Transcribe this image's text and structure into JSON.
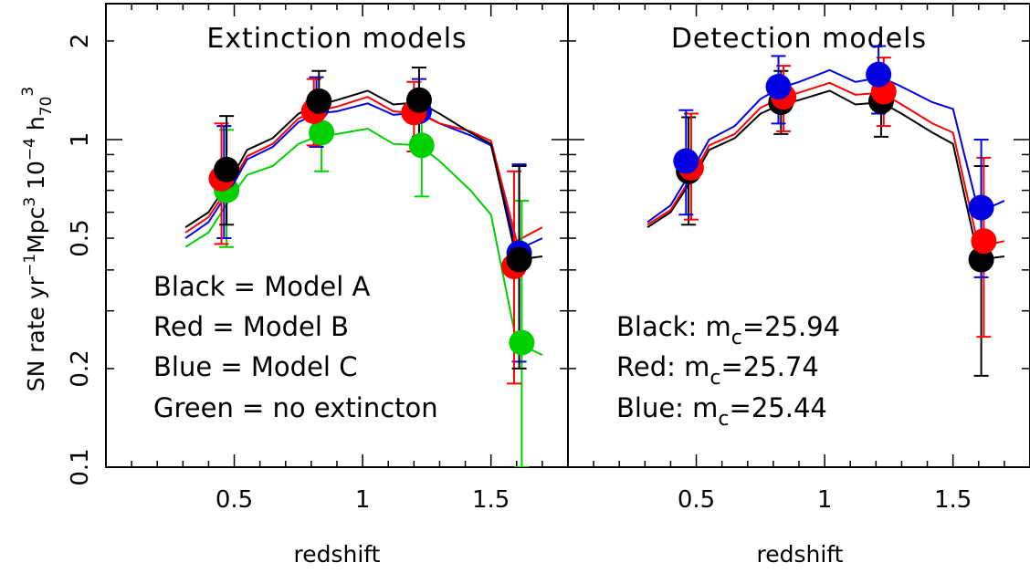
{
  "chart_data": [
    {
      "type": "line",
      "title": "Extinction models",
      "xlabel": "redshift",
      "ylabel": "SN rate yr⁻¹Mpc³ 10⁻⁴ h₇₀³",
      "xlim": [
        0.0,
        1.8
      ],
      "ylim": [
        0.1,
        2.6
      ],
      "yscale": "log",
      "xticks": [
        0.5,
        1,
        1.5
      ],
      "xtick_labels": [
        "0.5",
        "1",
        "1.5"
      ],
      "yticks": [
        0.1,
        0.2,
        0.5,
        1,
        2
      ],
      "ytick_labels": [
        "0.1",
        "0.2",
        "0.5",
        "1",
        "2"
      ],
      "annotations": [
        "Black = Model A",
        "Red = Model B",
        "Blue = Model C",
        "Green = no extincton"
      ],
      "series": [
        {
          "color": "#00d000",
          "curve": {
            "x": [
              0.31,
              0.4,
              0.5,
              0.55,
              0.65,
              0.75,
              0.82,
              0.9,
              1.02,
              1.12,
              1.22,
              1.3,
              1.42,
              1.5,
              1.6,
              1.7
            ],
            "y": [
              0.47,
              0.52,
              0.69,
              0.78,
              0.83,
              0.97,
              1.02,
              1.04,
              1.08,
              0.97,
              0.96,
              0.86,
              0.7,
              0.59,
              0.24,
              0.22
            ]
          },
          "points": [
            {
              "x": 0.47,
              "y": 0.7,
              "lo": 0.47,
              "hi": 1.07
            },
            {
              "x": 0.84,
              "y": 1.05,
              "lo": 0.8,
              "hi": 1.33
            },
            {
              "x": 1.23,
              "y": 0.96,
              "lo": 0.67,
              "hi": 1.23
            },
            {
              "x": 1.62,
              "y": 0.24,
              "lo": 0.1,
              "hi": 0.65
            }
          ]
        },
        {
          "color": "#0000e0",
          "curve": {
            "x": [
              0.31,
              0.4,
              0.5,
              0.55,
              0.65,
              0.75,
              0.82,
              0.9,
              1.02,
              1.12,
              1.22,
              1.3,
              1.42,
              1.5,
              1.6,
              1.7
            ],
            "y": [
              0.5,
              0.56,
              0.74,
              0.87,
              0.95,
              1.13,
              1.2,
              1.22,
              1.29,
              1.19,
              1.21,
              1.12,
              1.03,
              0.96,
              0.46,
              0.5
            ]
          },
          "points": [
            {
              "x": 0.46,
              "y": 0.77,
              "lo": 0.5,
              "hi": 1.1
            },
            {
              "x": 0.82,
              "y": 1.25,
              "lo": 0.95,
              "hi": 1.55
            },
            {
              "x": 1.22,
              "y": 1.22,
              "lo": 0.92,
              "hi": 1.53
            },
            {
              "x": 1.61,
              "y": 0.45,
              "lo": 0.21,
              "hi": 0.84
            }
          ]
        },
        {
          "color": "#ff0000",
          "curve": {
            "x": [
              0.31,
              0.4,
              0.5,
              0.55,
              0.65,
              0.75,
              0.82,
              0.9,
              1.02,
              1.12,
              1.22,
              1.3,
              1.42,
              1.5,
              1.6,
              1.7
            ],
            "y": [
              0.52,
              0.58,
              0.76,
              0.89,
              0.97,
              1.16,
              1.22,
              1.26,
              1.35,
              1.22,
              1.2,
              1.12,
              1.06,
              0.99,
              0.49,
              0.54
            ]
          },
          "points": [
            {
              "x": 0.45,
              "y": 0.76,
              "lo": 0.48,
              "hi": 1.12
            },
            {
              "x": 0.81,
              "y": 1.22,
              "lo": 0.96,
              "hi": 1.53
            },
            {
              "x": 1.2,
              "y": 1.21,
              "lo": 0.92,
              "hi": 1.5
            },
            {
              "x": 1.59,
              "y": 0.41,
              "lo": 0.18,
              "hi": 0.8
            }
          ]
        },
        {
          "color": "#000000",
          "curve": {
            "x": [
              0.31,
              0.4,
              0.5,
              0.55,
              0.65,
              0.75,
              0.82,
              0.9,
              1.02,
              1.12,
              1.22,
              1.3,
              1.42,
              1.5,
              1.6,
              1.7
            ],
            "y": [
              0.54,
              0.6,
              0.79,
              0.93,
              1.01,
              1.2,
              1.27,
              1.32,
              1.41,
              1.28,
              1.3,
              1.2,
              1.05,
              0.97,
              0.43,
              0.44
            ]
          },
          "points": [
            {
              "x": 0.47,
              "y": 0.81,
              "lo": 0.55,
              "hi": 1.18
            },
            {
              "x": 0.83,
              "y": 1.31,
              "lo": 1.03,
              "hi": 1.62
            },
            {
              "x": 1.22,
              "y": 1.32,
              "lo": 1.02,
              "hi": 1.66
            },
            {
              "x": 1.61,
              "y": 0.43,
              "lo": 0.2,
              "hi": 0.83
            }
          ]
        }
      ]
    },
    {
      "type": "line",
      "title": "Detection models",
      "xlabel": "redshift",
      "xlim": [
        0.0,
        1.8
      ],
      "ylim": [
        0.1,
        2.6
      ],
      "yscale": "log",
      "xticks": [
        0.5,
        1,
        1.5
      ],
      "xtick_labels": [
        "0.5",
        "1",
        "1.5"
      ],
      "annotations": [
        "Black: m_c=25.94",
        "Red: m_c=25.74",
        "Blue: m_c=25.44"
      ],
      "annotation_parts": [
        {
          "pre": "Black: m",
          "sub": "c",
          "post": "=25.94"
        },
        {
          "pre": "Red: m",
          "sub": "c",
          "post": "=25.74"
        },
        {
          "pre": "Blue: m",
          "sub": "c",
          "post": "=25.44"
        }
      ],
      "series": [
        {
          "color": "#000000",
          "curve": {
            "x": [
              0.31,
              0.4,
              0.5,
              0.55,
              0.65,
              0.75,
              0.82,
              0.9,
              1.02,
              1.12,
              1.22,
              1.3,
              1.42,
              1.5,
              1.6,
              1.7
            ],
            "y": [
              0.54,
              0.6,
              0.79,
              0.93,
              1.01,
              1.2,
              1.27,
              1.32,
              1.41,
              1.28,
              1.3,
              1.2,
              1.05,
              0.97,
              0.43,
              0.44
            ]
          },
          "points": [
            {
              "x": 0.47,
              "y": 0.8,
              "lo": 0.55,
              "hi": 1.17
            },
            {
              "x": 0.83,
              "y": 1.3,
              "lo": 1.04,
              "hi": 1.62
            },
            {
              "x": 1.22,
              "y": 1.31,
              "lo": 1.02,
              "hi": 1.65
            },
            {
              "x": 1.61,
              "y": 0.43,
              "lo": 0.19,
              "hi": 0.83
            }
          ]
        },
        {
          "color": "#ff0000",
          "curve": {
            "x": [
              0.31,
              0.4,
              0.5,
              0.55,
              0.65,
              0.75,
              0.82,
              0.9,
              1.02,
              1.12,
              1.22,
              1.3,
              1.42,
              1.5,
              1.6,
              1.7
            ],
            "y": [
              0.55,
              0.61,
              0.81,
              0.96,
              1.04,
              1.25,
              1.33,
              1.39,
              1.49,
              1.37,
              1.39,
              1.28,
              1.12,
              1.05,
              0.47,
              0.49
            ]
          },
          "points": [
            {
              "x": 0.48,
              "y": 0.82,
              "lo": 0.57,
              "hi": 1.2
            },
            {
              "x": 0.84,
              "y": 1.35,
              "lo": 1.06,
              "hi": 1.68
            },
            {
              "x": 1.23,
              "y": 1.4,
              "lo": 1.1,
              "hi": 1.78
            },
            {
              "x": 1.62,
              "y": 0.49,
              "lo": 0.25,
              "hi": 0.88
            }
          ]
        },
        {
          "color": "#0000e0",
          "curve": {
            "x": [
              0.31,
              0.4,
              0.5,
              0.55,
              0.65,
              0.75,
              0.82,
              0.9,
              1.02,
              1.12,
              1.22,
              1.3,
              1.42,
              1.5,
              1.6,
              1.7
            ],
            "y": [
              0.56,
              0.63,
              0.85,
              1.0,
              1.1,
              1.33,
              1.43,
              1.5,
              1.63,
              1.5,
              1.55,
              1.45,
              1.3,
              1.24,
              0.6,
              0.65
            ]
          },
          "points": [
            {
              "x": 0.46,
              "y": 0.86,
              "lo": 0.59,
              "hi": 1.23
            },
            {
              "x": 0.82,
              "y": 1.45,
              "lo": 1.12,
              "hi": 1.8
            },
            {
              "x": 1.21,
              "y": 1.58,
              "lo": 1.2,
              "hi": 1.93
            },
            {
              "x": 1.61,
              "y": 0.62,
              "lo": 0.38,
              "hi": 1.0
            }
          ]
        }
      ]
    }
  ]
}
